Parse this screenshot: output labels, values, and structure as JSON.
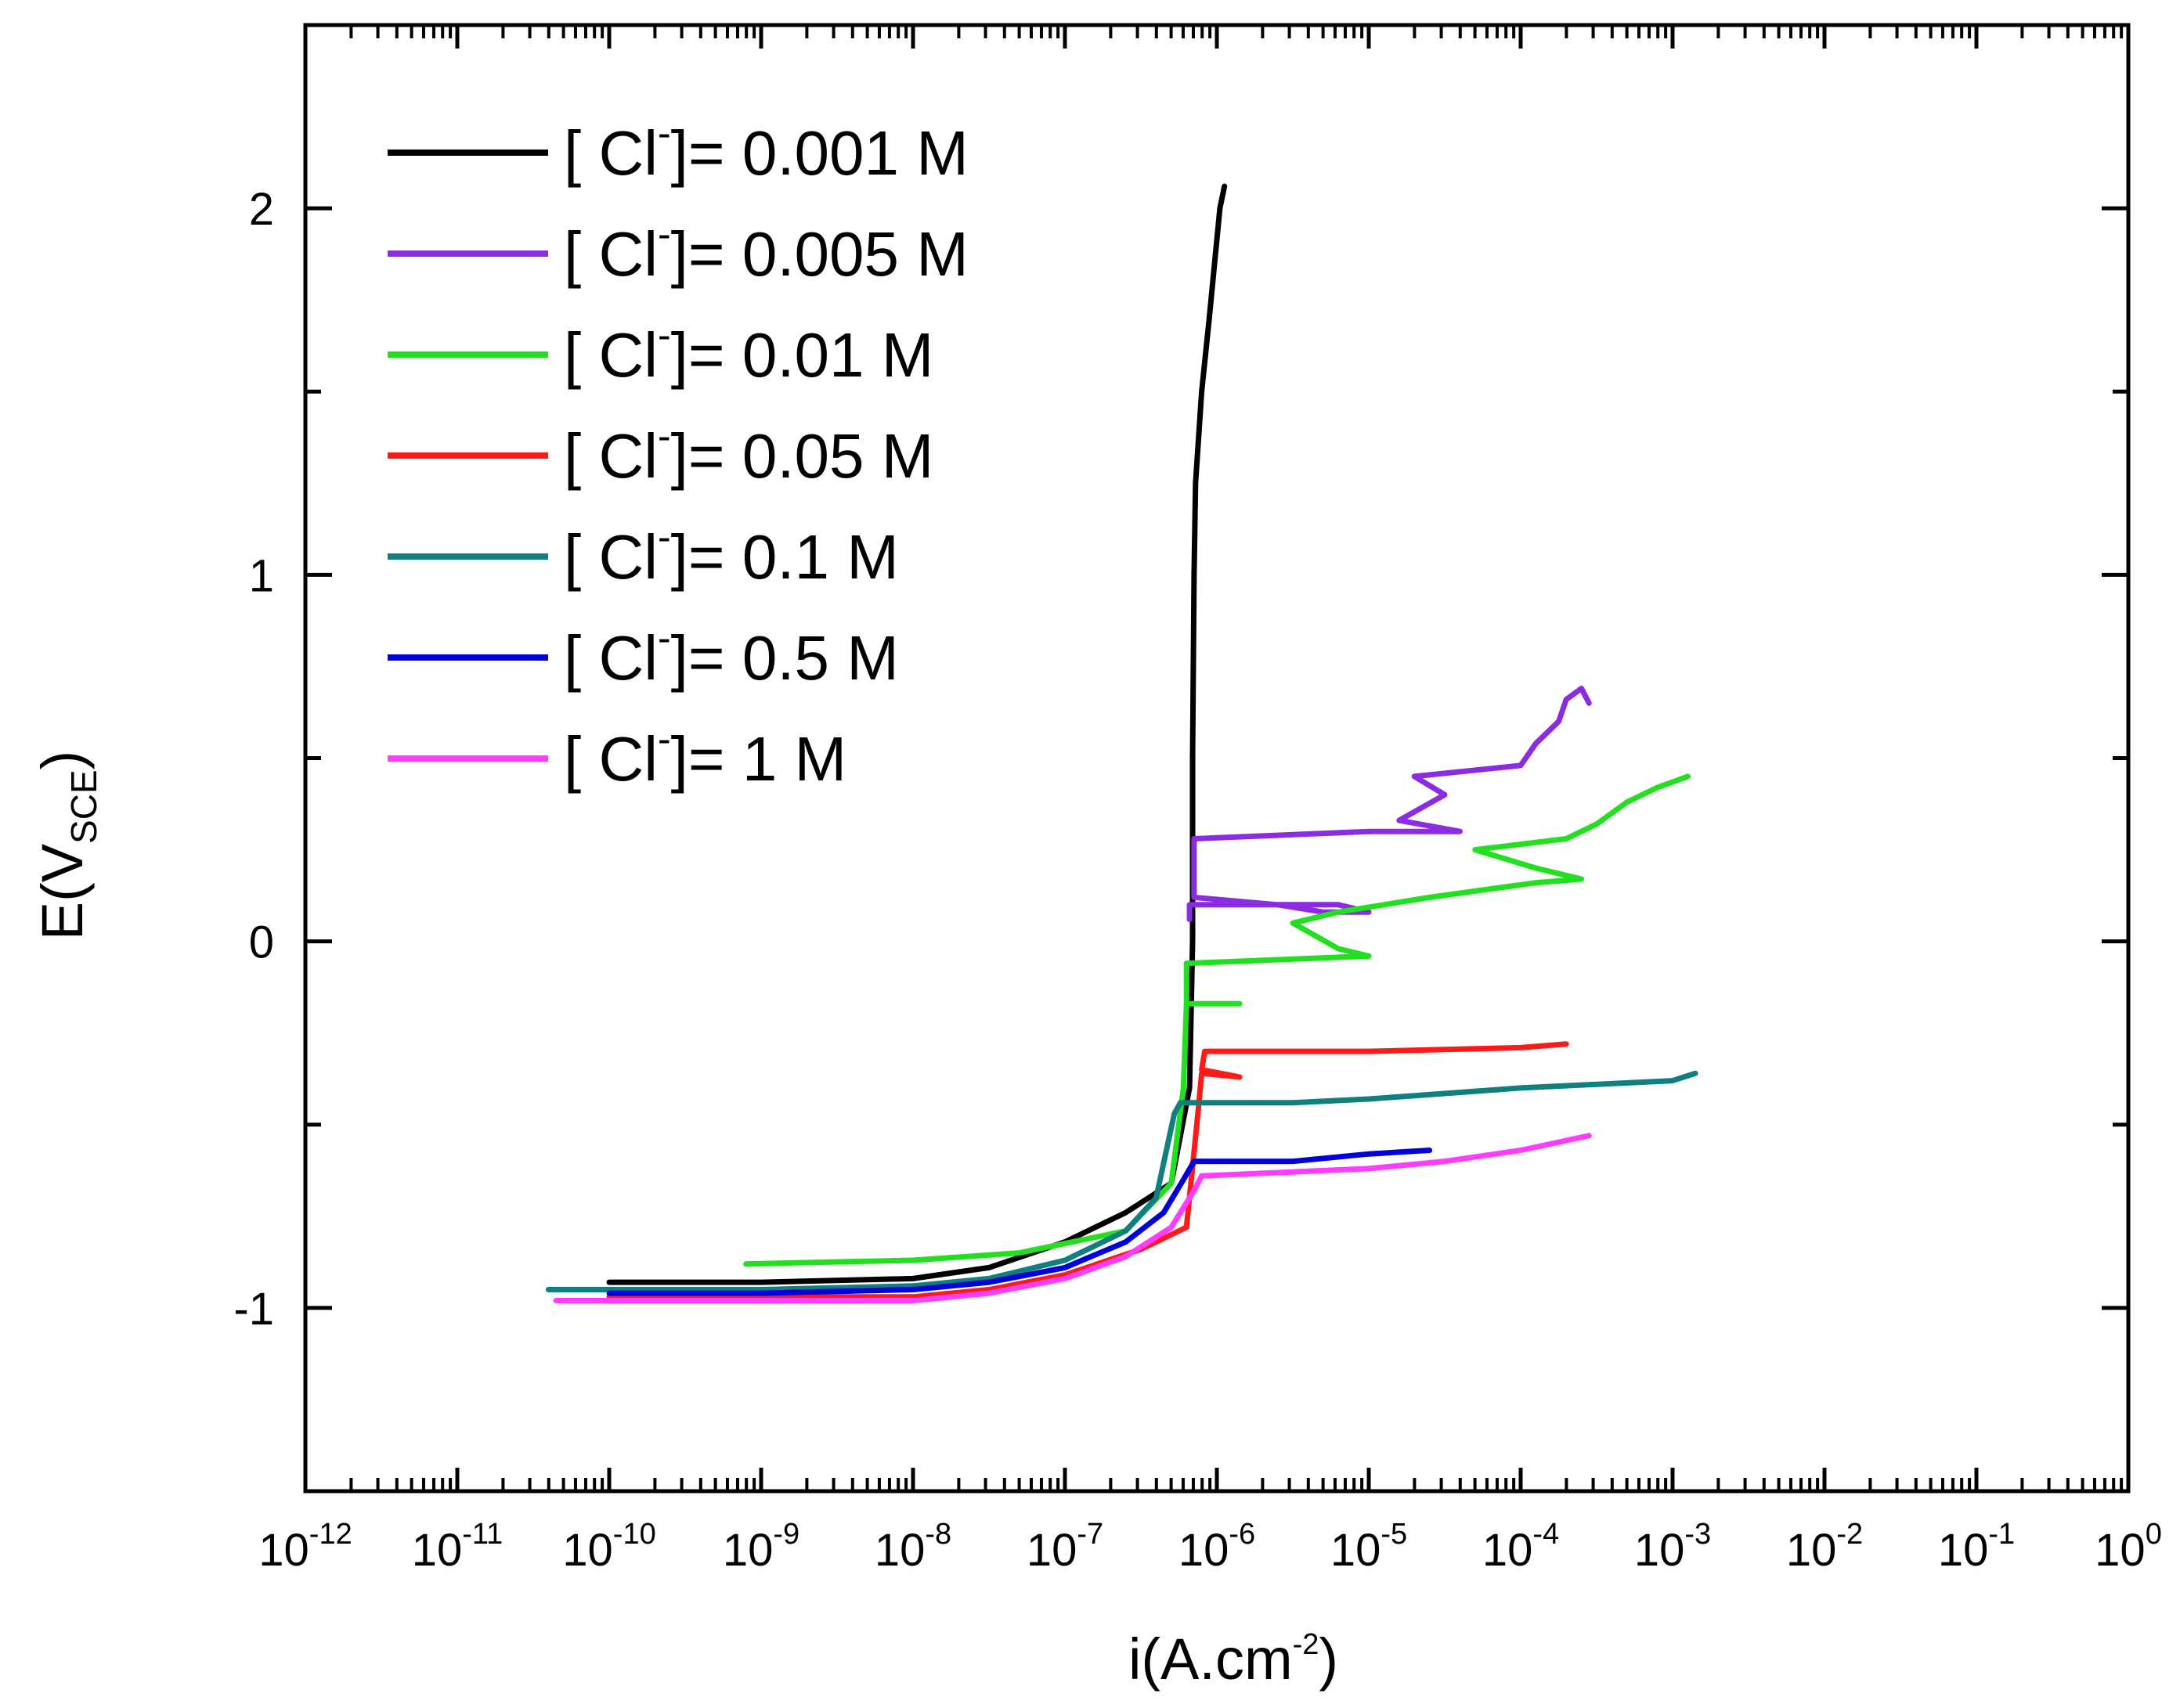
{
  "chart_data": {
    "type": "line",
    "title": "",
    "xlabel": {
      "base": "i(A.cm",
      "sup": "-2",
      "tail": ")"
    },
    "ylabel": {
      "base": "E(V",
      "sub": "SCE",
      "tail": ")"
    },
    "xscale": "log",
    "xlim": [
      -12,
      0
    ],
    "ylim": [
      -1.5,
      2.5
    ],
    "x_ticks": [
      {
        "exp": -12,
        "base": "10",
        "sup": "-12"
      },
      {
        "exp": -11,
        "base": "10",
        "sup": "-11"
      },
      {
        "exp": -10,
        "base": "10",
        "sup": "-10"
      },
      {
        "exp": -9,
        "base": "10",
        "sup": "-9"
      },
      {
        "exp": -8,
        "base": "10",
        "sup": "-8"
      },
      {
        "exp": -7,
        "base": "10",
        "sup": "-7"
      },
      {
        "exp": -6,
        "base": "10",
        "sup": "-6"
      },
      {
        "exp": -5,
        "base": "10",
        "sup": "-5"
      },
      {
        "exp": -4,
        "base": "10",
        "sup": "-4"
      },
      {
        "exp": -3,
        "base": "10",
        "sup": "-3"
      },
      {
        "exp": -2,
        "base": "10",
        "sup": "-2"
      },
      {
        "exp": -1,
        "base": "10",
        "sup": "-1"
      },
      {
        "exp": 0,
        "base": "10",
        "sup": "0"
      }
    ],
    "y_ticks": [
      {
        "value": 2,
        "label": "2"
      },
      {
        "value": 1,
        "label": "1"
      },
      {
        "value": 0,
        "label": "0"
      },
      {
        "value": -1,
        "label": "-1"
      }
    ],
    "legend_position": "top-left",
    "series": [
      {
        "name": "[ Cl-]= 0.001 M",
        "label_pre": "[ Cl",
        "label_sup": "-",
        "label_post": "]= 0.001 M",
        "color": "#000000",
        "points": [
          [
            -10.0,
            -0.93
          ],
          [
            -9.0,
            -0.93
          ],
          [
            -8.0,
            -0.92
          ],
          [
            -7.5,
            -0.89
          ],
          [
            -7.0,
            -0.82
          ],
          [
            -6.6,
            -0.74
          ],
          [
            -6.3,
            -0.66
          ],
          [
            -6.18,
            -0.4
          ],
          [
            -6.16,
            0.0
          ],
          [
            -6.16,
            0.5
          ],
          [
            -6.15,
            1.0
          ],
          [
            -6.14,
            1.25
          ],
          [
            -6.1,
            1.5
          ],
          [
            -6.05,
            1.7
          ],
          [
            -5.98,
            2.0
          ],
          [
            -5.95,
            2.06
          ]
        ]
      },
      {
        "name": "[ Cl-]= 0.005 M",
        "label_pre": "[ Cl",
        "label_sup": "-",
        "label_post": "]= 0.005 M",
        "color": "#8b2be2",
        "points": [
          [
            -6.18,
            0.06
          ],
          [
            -6.18,
            0.1
          ],
          [
            -5.95,
            0.1
          ],
          [
            -5.2,
            0.1
          ],
          [
            -5.0,
            0.08
          ],
          [
            -5.3,
            0.08
          ],
          [
            -5.6,
            0.1
          ],
          [
            -6.15,
            0.12
          ],
          [
            -6.15,
            0.28
          ],
          [
            -5.0,
            0.3
          ],
          [
            -4.4,
            0.3
          ],
          [
            -4.8,
            0.33
          ],
          [
            -4.5,
            0.4
          ],
          [
            -4.7,
            0.45
          ],
          [
            -4.0,
            0.48
          ],
          [
            -3.9,
            0.54
          ],
          [
            -3.75,
            0.6
          ],
          [
            -3.7,
            0.66
          ],
          [
            -3.6,
            0.69
          ],
          [
            -3.55,
            0.65
          ]
        ]
      },
      {
        "name": "[ Cl-]= 0.01 M",
        "label_pre": "[ Cl",
        "label_sup": "-",
        "label_post": "]= 0.01 M",
        "color": "#22e01f",
        "points": [
          [
            -9.1,
            -0.88
          ],
          [
            -8.0,
            -0.87
          ],
          [
            -7.3,
            -0.85
          ],
          [
            -6.6,
            -0.79
          ],
          [
            -6.3,
            -0.66
          ],
          [
            -6.22,
            -0.4
          ],
          [
            -6.2,
            -0.17
          ],
          [
            -5.85,
            -0.17
          ],
          [
            -6.2,
            -0.17
          ],
          [
            -6.2,
            -0.06
          ],
          [
            -5.0,
            -0.04
          ],
          [
            -5.2,
            -0.02
          ],
          [
            -5.5,
            0.05
          ],
          [
            -5.2,
            0.08
          ],
          [
            -4.6,
            0.12
          ],
          [
            -3.9,
            0.16
          ],
          [
            -3.6,
            0.17
          ],
          [
            -3.9,
            0.2
          ],
          [
            -4.3,
            0.25
          ],
          [
            -3.7,
            0.28
          ],
          [
            -3.5,
            0.32
          ],
          [
            -3.3,
            0.38
          ],
          [
            -3.1,
            0.42
          ],
          [
            -2.9,
            0.45
          ]
        ]
      },
      {
        "name": "[ Cl-]= 0.05 M",
        "label_pre": "[ Cl",
        "label_sup": "-",
        "label_post": "]= 0.05 M",
        "color": "#ff1a1a",
        "points": [
          [
            -10.0,
            -0.97
          ],
          [
            -9.0,
            -0.97
          ],
          [
            -8.0,
            -0.97
          ],
          [
            -7.5,
            -0.95
          ],
          [
            -7.0,
            -0.91
          ],
          [
            -6.5,
            -0.84
          ],
          [
            -6.2,
            -0.78
          ],
          [
            -6.12,
            -0.45
          ],
          [
            -6.1,
            -0.36
          ],
          [
            -5.85,
            -0.37
          ],
          [
            -6.1,
            -0.35
          ],
          [
            -6.08,
            -0.3
          ],
          [
            -5.0,
            -0.3
          ],
          [
            -4.0,
            -0.29
          ],
          [
            -3.7,
            -0.28
          ]
        ]
      },
      {
        "name": "[ Cl-]= 0.1 M",
        "label_pre": "[ Cl",
        "label_sup": "-",
        "label_post": "]= 0.1 M",
        "color": "#0f7f80",
        "points": [
          [
            -10.4,
            -0.95
          ],
          [
            -9.0,
            -0.95
          ],
          [
            -8.0,
            -0.94
          ],
          [
            -7.5,
            -0.92
          ],
          [
            -7.0,
            -0.87
          ],
          [
            -6.6,
            -0.79
          ],
          [
            -6.4,
            -0.7
          ],
          [
            -6.28,
            -0.47
          ],
          [
            -6.24,
            -0.44
          ],
          [
            -5.5,
            -0.44
          ],
          [
            -5.0,
            -0.43
          ],
          [
            -4.0,
            -0.4
          ],
          [
            -3.0,
            -0.38
          ],
          [
            -2.85,
            -0.36
          ]
        ]
      },
      {
        "name": "[ Cl-]= 0.5 M",
        "label_pre": "[ Cl",
        "label_sup": "-",
        "label_post": "]= 0.5 M",
        "color": "#0000dd",
        "points": [
          [
            -10.0,
            -0.96
          ],
          [
            -9.0,
            -0.96
          ],
          [
            -8.0,
            -0.95
          ],
          [
            -7.5,
            -0.93
          ],
          [
            -7.0,
            -0.89
          ],
          [
            -6.6,
            -0.82
          ],
          [
            -6.35,
            -0.74
          ],
          [
            -6.22,
            -0.65
          ],
          [
            -6.15,
            -0.6
          ],
          [
            -5.5,
            -0.6
          ],
          [
            -5.0,
            -0.58
          ],
          [
            -4.6,
            -0.57
          ]
        ]
      },
      {
        "name": "[ Cl-]= 1 M",
        "label_pre": "[ Cl",
        "label_sup": "-",
        "label_post": "]= 1 M",
        "color": "#ff3cff",
        "points": [
          [
            -10.35,
            -0.98
          ],
          [
            -9.0,
            -0.98
          ],
          [
            -8.0,
            -0.98
          ],
          [
            -7.5,
            -0.96
          ],
          [
            -7.0,
            -0.92
          ],
          [
            -6.6,
            -0.86
          ],
          [
            -6.3,
            -0.78
          ],
          [
            -6.15,
            -0.68
          ],
          [
            -6.1,
            -0.64
          ],
          [
            -5.0,
            -0.62
          ],
          [
            -4.5,
            -0.6
          ],
          [
            -4.0,
            -0.57
          ],
          [
            -3.55,
            -0.53
          ]
        ]
      }
    ]
  }
}
